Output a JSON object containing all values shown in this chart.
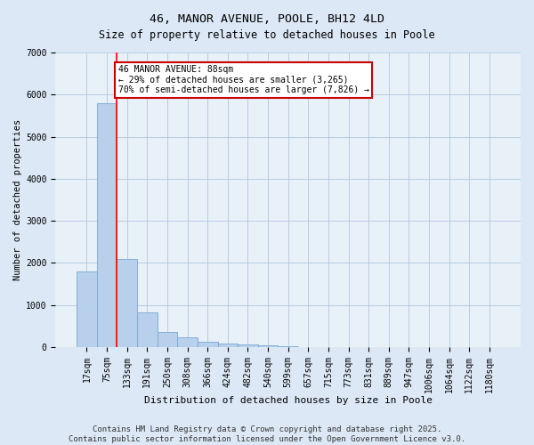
{
  "title": "46, MANOR AVENUE, POOLE, BH12 4LD",
  "subtitle": "Size of property relative to detached houses in Poole",
  "xlabel": "Distribution of detached houses by size in Poole",
  "ylabel": "Number of detached properties",
  "categories": [
    "17sqm",
    "75sqm",
    "133sqm",
    "191sqm",
    "250sqm",
    "308sqm",
    "366sqm",
    "424sqm",
    "482sqm",
    "540sqm",
    "599sqm",
    "657sqm",
    "715sqm",
    "773sqm",
    "831sqm",
    "889sqm",
    "947sqm",
    "1006sqm",
    "1064sqm",
    "1122sqm",
    "1180sqm"
  ],
  "values": [
    1800,
    5800,
    2100,
    820,
    350,
    230,
    130,
    85,
    60,
    35,
    20,
    10,
    5,
    3,
    2,
    1,
    0,
    0,
    0,
    0,
    0
  ],
  "bar_color": "#b8d0eb",
  "bar_edge_color": "#7aa8d0",
  "annotation_line1": "46 MANOR AVENUE: 88sqm",
  "annotation_line2": "← 29% of detached houses are smaller (3,265)",
  "annotation_line3": "70% of semi-detached houses are larger (7,826) →",
  "annotation_box_color": "#ffffff",
  "annotation_box_edge_color": "#cc0000",
  "red_line_x": 1.5,
  "ylim": [
    0,
    7000
  ],
  "yticks": [
    0,
    1000,
    2000,
    3000,
    4000,
    5000,
    6000,
    7000
  ],
  "footer_line1": "Contains HM Land Registry data © Crown copyright and database right 2025.",
  "footer_line2": "Contains public sector information licensed under the Open Government Licence v3.0.",
  "bg_color": "#dce8f5",
  "plot_bg_color": "#e8f0f8",
  "title_fontsize": 9.5,
  "subtitle_fontsize": 8.5,
  "axis_fontsize": 7,
  "ylabel_fontsize": 7.5,
  "xlabel_fontsize": 8,
  "footer_fontsize": 6.5,
  "annotation_fontsize": 7
}
